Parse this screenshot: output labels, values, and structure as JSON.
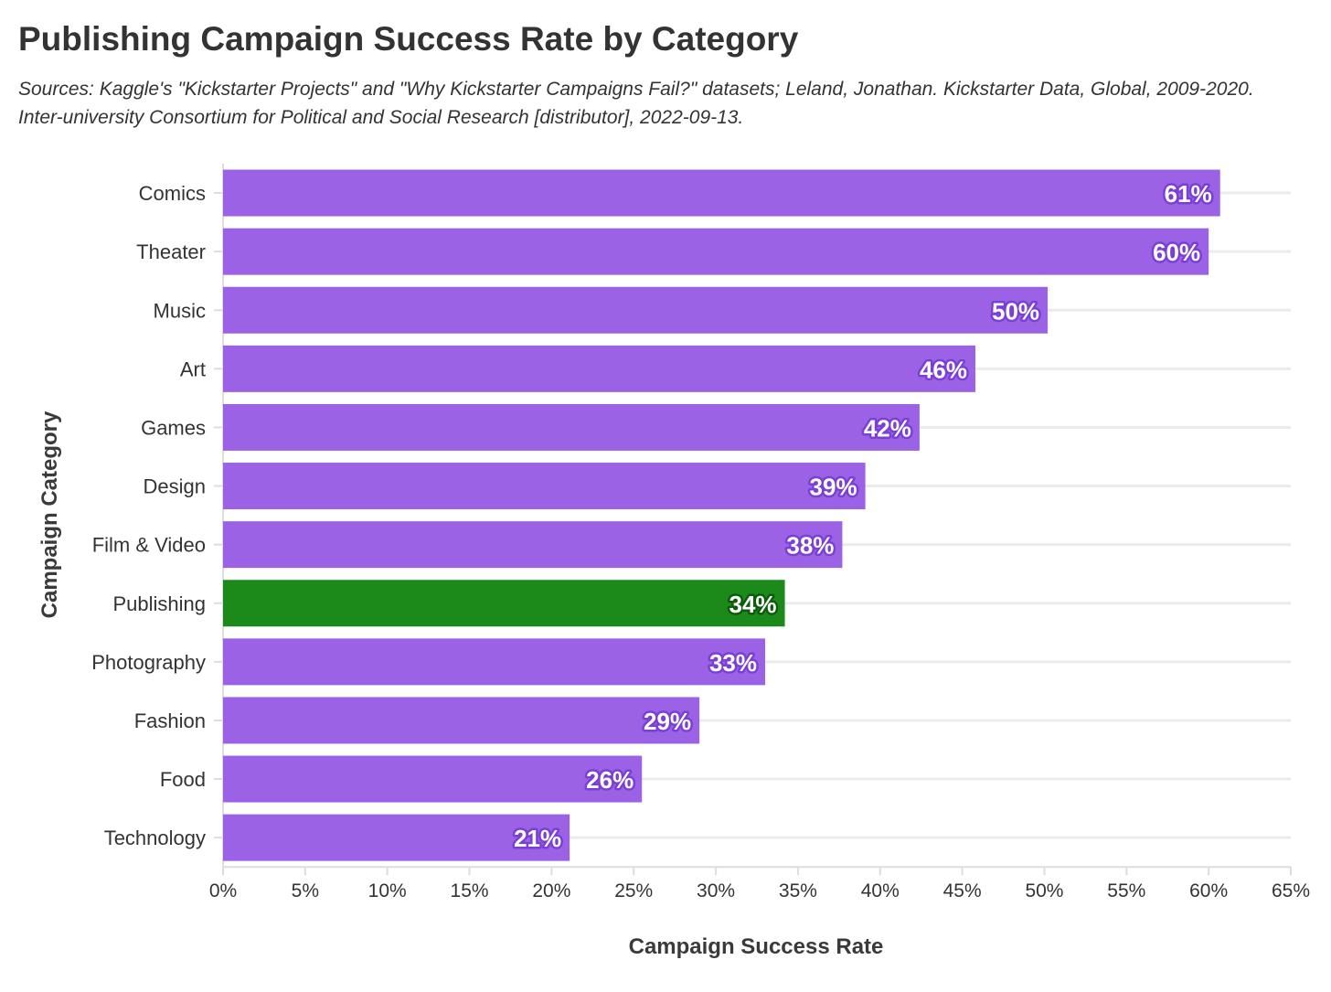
{
  "chart_data": {
    "type": "bar",
    "orientation": "horizontal",
    "title": "Publishing Campaign Success Rate by Category",
    "subtitle": "Sources: Kaggle's \"Kickstarter Projects\" and \"Why Kickstarter Campaigns Fail?\" datasets; Leland, Jonathan. Kickstarter Data, Global, 2009-2020. Inter-university Consortium for Political and Social Research [distributor], 2022-09-13.",
    "xlabel": "Campaign Success Rate",
    "ylabel": "Campaign Category",
    "categories": [
      "Comics",
      "Theater",
      "Music",
      "Art",
      "Games",
      "Design",
      "Film & Video",
      "Publishing",
      "Photography",
      "Fashion",
      "Food",
      "Technology"
    ],
    "values": [
      60.7,
      60.0,
      50.2,
      45.8,
      42.4,
      39.1,
      37.7,
      34.2,
      33.0,
      29.0,
      25.5,
      21.1
    ],
    "value_labels": [
      "61%",
      "60%",
      "50%",
      "46%",
      "42%",
      "39%",
      "38%",
      "34%",
      "33%",
      "29%",
      "26%",
      "21%"
    ],
    "highlight_category": "Publishing",
    "xlim": [
      0,
      65
    ],
    "xticks": [
      0,
      5,
      10,
      15,
      20,
      25,
      30,
      35,
      40,
      45,
      50,
      55,
      60,
      65
    ],
    "xtick_labels": [
      "0%",
      "5%",
      "10%",
      "15%",
      "20%",
      "25%",
      "30%",
      "35%",
      "40%",
      "45%",
      "50%",
      "55%",
      "60%",
      "65%"
    ],
    "grid": "horizontal lines at each category",
    "legend": "none",
    "colors": {
      "bar": "#9b62e6",
      "bar_outline": "#7a3fd6",
      "highlight": "#1b8a1b",
      "highlight_outline": "#0d5c0d",
      "grid": "#ebebeb",
      "axis": "#dddddd",
      "text": "#333333"
    }
  }
}
